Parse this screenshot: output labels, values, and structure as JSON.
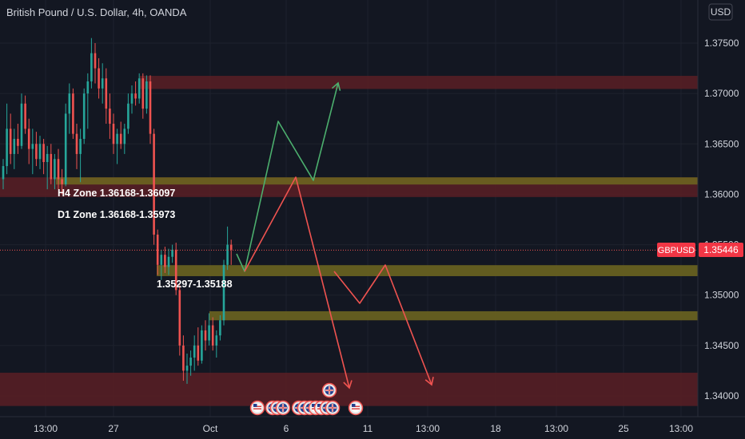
{
  "header": {
    "title": "British Pound / U.S. Dollar, 4h, OANDA",
    "currency": "USD"
  },
  "colors": {
    "background": "#131722",
    "up": "#26a69a",
    "down": "#ef5350",
    "zone_red": "#5a1f24",
    "zone_olive": "#6b6420",
    "arrow_green": "#4caf6e",
    "arrow_red": "#ef5350",
    "price_tag": "#f23645"
  },
  "icons": {
    "event_flag": "uk-flag-icon",
    "event_flag_us": "us-flag-icon"
  },
  "chart_data": {
    "type": "candlestick",
    "symbol": "GBPUSD",
    "timeframe": "4h",
    "ylim": [
      1.3385,
      1.379
    ],
    "y_ticks": [
      {
        "value": 1.375,
        "label": "1.37500"
      },
      {
        "value": 1.37,
        "label": "1.37000"
      },
      {
        "value": 1.365,
        "label": "1.36500"
      },
      {
        "value": 1.36,
        "label": "1.36000"
      },
      {
        "value": 1.355,
        "label": "1.35500"
      },
      {
        "value": 1.35,
        "label": "1.35000"
      },
      {
        "value": 1.345,
        "label": "1.34500"
      },
      {
        "value": 1.34,
        "label": "1.34000"
      }
    ],
    "x_ticks": [
      "13:00",
      "27",
      "Oct",
      "6",
      "11",
      "13:00",
      "18",
      "13:00",
      "25",
      "13:00"
    ],
    "last_price": {
      "symbol": "GBPUSD",
      "value": 1.35446,
      "label": "1.35446"
    },
    "candles": [
      [
        1.3615,
        1.3635,
        1.3605,
        1.3628
      ],
      [
        1.3628,
        1.369,
        1.362,
        1.3665
      ],
      [
        1.3665,
        1.368,
        1.363,
        1.364
      ],
      [
        1.364,
        1.3665,
        1.3625,
        1.3655
      ],
      [
        1.3655,
        1.367,
        1.364,
        1.3648
      ],
      [
        1.3648,
        1.37,
        1.3645,
        1.369
      ],
      [
        1.369,
        1.3698,
        1.366,
        1.3665
      ],
      [
        1.3665,
        1.3675,
        1.363,
        1.3645
      ],
      [
        1.3645,
        1.3665,
        1.362,
        1.365
      ],
      [
        1.365,
        1.3662,
        1.3628,
        1.3635
      ],
      [
        1.3635,
        1.3658,
        1.3625,
        1.365
      ],
      [
        1.365,
        1.3655,
        1.362,
        1.3632
      ],
      [
        1.3632,
        1.3648,
        1.3605,
        1.364
      ],
      [
        1.364,
        1.365,
        1.361,
        1.3615
      ],
      [
        1.3615,
        1.364,
        1.3605,
        1.3635
      ],
      [
        1.3635,
        1.3645,
        1.3605,
        1.3615
      ],
      [
        1.3615,
        1.3625,
        1.36,
        1.361
      ],
      [
        1.361,
        1.369,
        1.3608,
        1.368
      ],
      [
        1.368,
        1.371,
        1.366,
        1.37
      ],
      [
        1.37,
        1.3705,
        1.3655,
        1.366
      ],
      [
        1.366,
        1.367,
        1.3625,
        1.364
      ],
      [
        1.364,
        1.3665,
        1.3612,
        1.3655
      ],
      [
        1.3655,
        1.3705,
        1.365,
        1.37
      ],
      [
        1.37,
        1.372,
        1.3665,
        1.3712
      ],
      [
        1.3712,
        1.3755,
        1.3705,
        1.374
      ],
      [
        1.374,
        1.375,
        1.371,
        1.3725
      ],
      [
        1.3725,
        1.3735,
        1.3695,
        1.3705
      ],
      [
        1.3705,
        1.373,
        1.369,
        1.3715
      ],
      [
        1.3715,
        1.3725,
        1.367,
        1.3685
      ],
      [
        1.3685,
        1.37,
        1.3655,
        1.367
      ],
      [
        1.367,
        1.368,
        1.364,
        1.365
      ],
      [
        1.365,
        1.3665,
        1.363,
        1.366
      ],
      [
        1.366,
        1.3672,
        1.3645,
        1.365
      ],
      [
        1.365,
        1.367,
        1.364,
        1.3665
      ],
      [
        1.3665,
        1.37,
        1.366,
        1.369
      ],
      [
        1.369,
        1.3708,
        1.368,
        1.37
      ],
      [
        1.37,
        1.3712,
        1.3688,
        1.3695
      ],
      [
        1.3695,
        1.372,
        1.369,
        1.3715
      ],
      [
        1.3715,
        1.372,
        1.3675,
        1.3685
      ],
      [
        1.3685,
        1.3718,
        1.368,
        1.3712
      ],
      [
        1.3712,
        1.3718,
        1.365,
        1.366
      ],
      [
        1.366,
        1.3665,
        1.355,
        1.356
      ],
      [
        1.356,
        1.3565,
        1.352,
        1.353
      ],
      [
        1.353,
        1.3545,
        1.3515,
        1.354
      ],
      [
        1.354,
        1.3548,
        1.3522,
        1.3528
      ],
      [
        1.3528,
        1.3546,
        1.352,
        1.3538
      ],
      [
        1.3538,
        1.355,
        1.3532,
        1.3545
      ],
      [
        1.3545,
        1.3552,
        1.35,
        1.3505
      ],
      [
        1.3505,
        1.351,
        1.344,
        1.345
      ],
      [
        1.345,
        1.346,
        1.3415,
        1.3425
      ],
      [
        1.3425,
        1.3442,
        1.3412,
        1.343
      ],
      [
        1.343,
        1.3445,
        1.342,
        1.3438
      ],
      [
        1.3438,
        1.346,
        1.3425,
        1.345
      ],
      [
        1.345,
        1.3468,
        1.343,
        1.3435
      ],
      [
        1.3435,
        1.347,
        1.3432,
        1.3465
      ],
      [
        1.3465,
        1.3475,
        1.3445,
        1.3455
      ],
      [
        1.3455,
        1.3482,
        1.345,
        1.347
      ],
      [
        1.347,
        1.3478,
        1.3445,
        1.345
      ],
      [
        1.345,
        1.3465,
        1.3438,
        1.346
      ],
      [
        1.346,
        1.348,
        1.3455,
        1.3475
      ],
      [
        1.3475,
        1.3535,
        1.347,
        1.353
      ],
      [
        1.353,
        1.3568,
        1.3525,
        1.355
      ],
      [
        1.355,
        1.3555,
        1.353,
        1.3545
      ]
    ],
    "zones": [
      {
        "kind": "red",
        "y1": 1.37175,
        "y2": 1.37045
      },
      {
        "kind": "red",
        "y1": 1.36168,
        "y2": 1.35973
      },
      {
        "kind": "olive",
        "y1": 1.36168,
        "y2": 1.36097
      },
      {
        "kind": "olive",
        "y1": 1.35297,
        "y2": 1.35188
      },
      {
        "kind": "olive",
        "y1": 1.3484,
        "y2": 1.3475
      },
      {
        "kind": "red",
        "y1": 1.3423,
        "y2": 1.339
      }
    ],
    "annotations": [
      {
        "text": "H4 Zone 1.36168-1.36097"
      },
      {
        "text": "D1 Zone 1.36168-1.35973"
      },
      {
        "text": "1.35297-1.35188"
      }
    ]
  }
}
